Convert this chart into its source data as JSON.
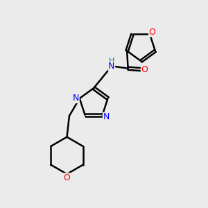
{
  "background_color": "#ebebeb",
  "bond_color": "#000000",
  "nitrogen_color": "#0000ff",
  "oxygen_color": "#ff0000",
  "nh_color": "#008080",
  "line_width": 1.8,
  "figsize": [
    3.0,
    3.0
  ],
  "dpi": 100,
  "xlim": [
    0,
    10
  ],
  "ylim": [
    0,
    10
  ]
}
